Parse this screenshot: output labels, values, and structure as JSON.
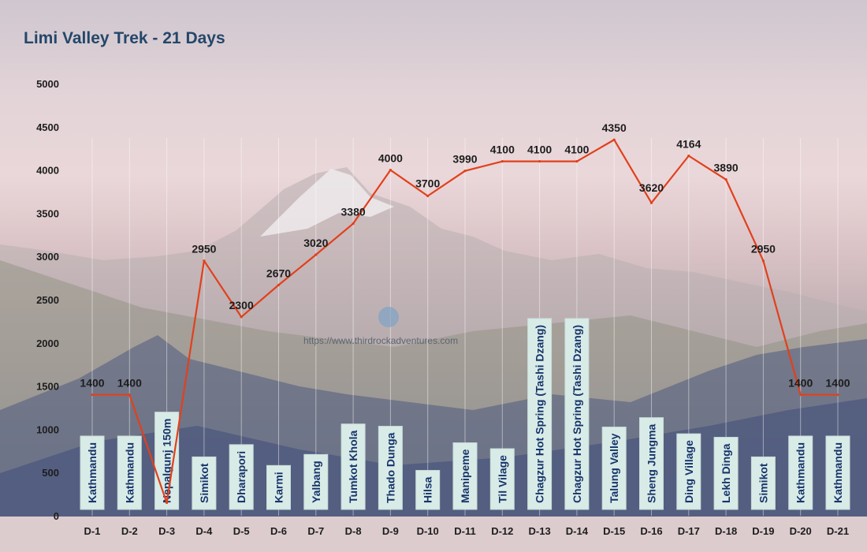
{
  "chart_data": {
    "type": "line",
    "title": "Limi Valley Trek - 21 Days",
    "xlabel": "",
    "ylabel": "",
    "ylim": [
      0,
      5000
    ],
    "yticks": [
      0,
      500,
      1000,
      1500,
      2000,
      2500,
      3000,
      3500,
      4000,
      4500,
      5000
    ],
    "grid": "vertical",
    "line_color": "#e2401c",
    "categories": [
      "D-1",
      "D-2",
      "D-3",
      "D-4",
      "D-5",
      "D-6",
      "D-7",
      "D-8",
      "D-9",
      "D-10",
      "D-11",
      "D-12",
      "D-13",
      "D-14",
      "D-15",
      "D-16",
      "D-17",
      "D-18",
      "D-19",
      "D-20",
      "D-21"
    ],
    "places": [
      "Kathmandu",
      "Kathmandu",
      "Nepalgunj 150m",
      "Simikot",
      "Dharapori",
      "Karmi",
      "Yalbang",
      "Tumkot Khola",
      "Thado Dunga",
      "Hilsa",
      "Manipeme",
      "Til Vilage",
      "Chagzur Hot Spring (Tashi Dzang)",
      "Chagzur Hot Spring (Tashi Dzang)",
      "Talung Valley",
      "Sheng Jungma",
      "Ding Village",
      "Lekh Dinga",
      "Simikot",
      "Kathmandu",
      "Kathmandu"
    ],
    "values": [
      1400,
      1400,
      150,
      2950,
      2300,
      2670,
      3020,
      3380,
      4000,
      3700,
      3990,
      4100,
      4100,
      4100,
      4350,
      3620,
      4164,
      3890,
      2950,
      1400,
      1400
    ],
    "data_labels": [
      "1400",
      "1400",
      "",
      "2950",
      "2300",
      "2670",
      "3020",
      "3380",
      "4000",
      "3700",
      "3990",
      "4100",
      "4100",
      "4100",
      "4350",
      "3620",
      "4164",
      "3890",
      "2950",
      "1400",
      "1400"
    ]
  },
  "watermark": "https://www.thirdrockadventures.com"
}
